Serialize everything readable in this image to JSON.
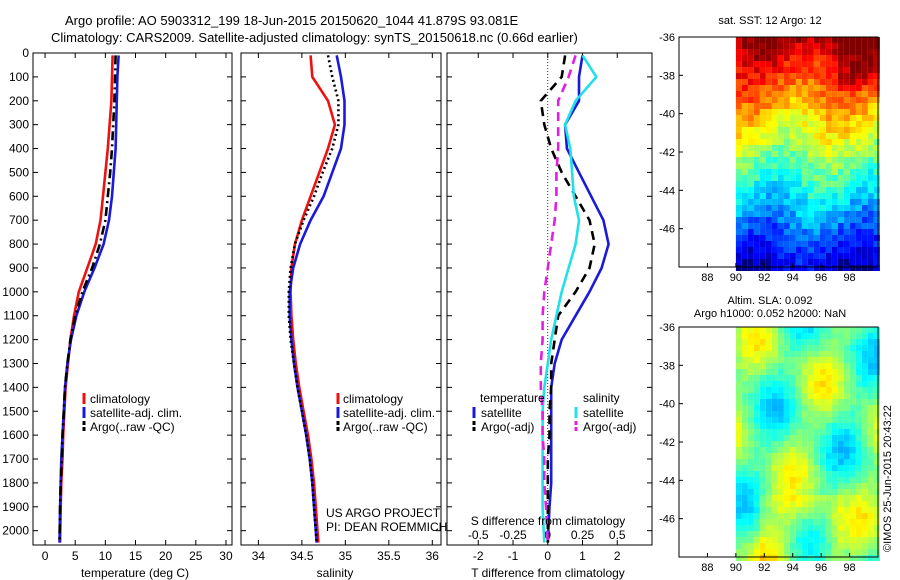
{
  "header": {
    "line1": "Argo profile: AO 5903312_199 18-Jun-2015 20150620_1044 41.879S 93.081E",
    "line2": "Climatology: CARS2009. Satellite-adjusted climatology: synTS_20150618.nc (0.66d earlier)"
  },
  "colors": {
    "climatology": "#ee1111",
    "satellite": "#1a1ad8",
    "argo": "#000000",
    "s_satellite": "#22e0e8",
    "s_argo": "#e020e0"
  },
  "chart_data": [
    {
      "type": "line",
      "xlabel": "temperature (deg C)",
      "ylabel": "",
      "xlim": [
        -2,
        31
      ],
      "xticks": [
        "0",
        "5",
        "10",
        "15",
        "20",
        "25",
        "30"
      ],
      "ylim": [
        2060,
        0
      ],
      "yticks": [
        "0",
        "100",
        "200",
        "300",
        "400",
        "500",
        "600",
        "700",
        "800",
        "900",
        "1000",
        "1100",
        "1200",
        "1300",
        "1400",
        "1500",
        "1600",
        "1700",
        "1800",
        "1900",
        "2000"
      ],
      "legend": [
        "climatology",
        "satellite-adj. clim.",
        "Argo(..raw -QC)"
      ],
      "series": [
        {
          "name": "climatology",
          "style": "solid",
          "color": "climatology",
          "x": [
            11.2,
            11.1,
            11.0,
            10.7,
            10.4,
            10.0,
            9.6,
            9.2,
            8.4,
            7.0,
            5.6,
            4.8,
            4.2,
            3.8,
            3.4,
            3.2,
            3.0,
            2.9,
            2.7,
            2.6,
            2.5
          ],
          "y": [
            10,
            100,
            200,
            300,
            400,
            500,
            600,
            700,
            800,
            900,
            1000,
            1100,
            1200,
            1300,
            1400,
            1500,
            1600,
            1700,
            1800,
            1900,
            2050
          ]
        },
        {
          "name": "satellite-adj. clim.",
          "style": "solid",
          "color": "satellite",
          "x": [
            12.2,
            12.0,
            11.9,
            11.8,
            11.7,
            11.4,
            11.1,
            10.6,
            9.7,
            8.2,
            6.5,
            5.2,
            4.3,
            3.7,
            3.3,
            3.1,
            2.9,
            2.7,
            2.6,
            2.5,
            2.4
          ],
          "y": [
            10,
            100,
            200,
            300,
            400,
            500,
            600,
            700,
            800,
            900,
            1000,
            1100,
            1200,
            1300,
            1400,
            1500,
            1600,
            1700,
            1800,
            1900,
            2050
          ]
        },
        {
          "name": "Argo(..raw -QC)",
          "style": "dashdot",
          "color": "argo",
          "x": [
            11.7,
            11.6,
            11.5,
            11.3,
            11.1,
            10.8,
            10.4,
            10.0,
            9.1,
            7.8,
            6.2,
            5.0,
            4.2,
            3.7,
            3.3,
            3.1,
            2.9,
            2.8,
            2.6,
            2.5,
            2.4
          ],
          "y": [
            10,
            100,
            200,
            300,
            400,
            500,
            600,
            700,
            800,
            900,
            1000,
            1100,
            1200,
            1300,
            1400,
            1500,
            1600,
            1700,
            1800,
            1900,
            2050
          ]
        }
      ]
    },
    {
      "type": "line",
      "xlabel": "salinity",
      "ylabel": "",
      "xlim": [
        33.8,
        36.1
      ],
      "xticks": [
        "34",
        "34.5",
        "35",
        "35.5",
        "36"
      ],
      "ylim": [
        2060,
        0
      ],
      "legend": [
        "climatology",
        "satellite-adj. clim.",
        "Argo(..raw -QC)"
      ],
      "annotation": [
        "US ARGO PROJECT",
        "PI: DEAN ROEMMICH"
      ],
      "series": [
        {
          "name": "climatology",
          "style": "solid",
          "color": "climatology",
          "x": [
            34.6,
            34.62,
            34.8,
            34.88,
            34.8,
            34.7,
            34.6,
            34.5,
            34.42,
            34.38,
            34.37,
            34.38,
            34.4,
            34.43,
            34.47,
            34.52,
            34.57,
            34.61,
            34.64,
            34.66,
            34.68,
            34.69
          ],
          "y": [
            10,
            100,
            200,
            300,
            400,
            500,
            600,
            700,
            800,
            900,
            1000,
            1100,
            1200,
            1300,
            1400,
            1500,
            1600,
            1700,
            1800,
            1900,
            2000,
            2050
          ]
        },
        {
          "name": "satellite-adj. clim.",
          "style": "solid",
          "color": "satellite",
          "x": [
            34.9,
            34.95,
            34.99,
            34.99,
            34.95,
            34.85,
            34.75,
            34.6,
            34.48,
            34.4,
            34.36,
            34.36,
            34.38,
            34.41,
            34.45,
            34.5,
            34.55,
            34.59,
            34.62,
            34.64,
            34.66,
            34.67
          ],
          "y": [
            10,
            100,
            200,
            300,
            400,
            500,
            600,
            700,
            800,
            900,
            1000,
            1100,
            1200,
            1300,
            1400,
            1500,
            1600,
            1700,
            1800,
            1900,
            2000,
            2050
          ]
        },
        {
          "name": "Argo(..raw -QC)",
          "style": "dotted",
          "color": "argo",
          "x": [
            34.8,
            34.85,
            34.92,
            34.92,
            34.85,
            34.74,
            34.64,
            34.52,
            34.42,
            34.37,
            34.35,
            34.35,
            34.37,
            34.41,
            34.45,
            34.5,
            34.55,
            34.59,
            34.62,
            34.64,
            34.66,
            34.67
          ],
          "y": [
            10,
            100,
            200,
            300,
            400,
            500,
            600,
            700,
            800,
            900,
            1000,
            1100,
            1200,
            1300,
            1400,
            1500,
            1600,
            1700,
            1800,
            1900,
            2000,
            2050
          ]
        }
      ]
    },
    {
      "type": "line",
      "xlabel": "T difference from climatology",
      "x2label": "S difference from climatology",
      "xlim": [
        -2.9,
        3.0
      ],
      "xticks": [
        "-2",
        "-1",
        "0",
        "1",
        "2"
      ],
      "x2ticks": [
        "-0.5",
        "-0.25",
        "0",
        "0.25",
        "0.5"
      ],
      "ylim": [
        2060,
        0
      ],
      "legend_titles": [
        "temperature",
        "salinity"
      ],
      "legend": [
        "satellite",
        "Argo(-adj)",
        "satellite",
        "Argo(-adj)"
      ],
      "series": [
        {
          "name": "temperature satellite",
          "style": "solid",
          "color": "satellite",
          "x": [
            1.0,
            0.9,
            0.9,
            0.5,
            0.55,
            0.9,
            1.25,
            1.6,
            1.75,
            1.55,
            1.2,
            0.8,
            0.4,
            0.2,
            0.1,
            0.1,
            0.1,
            0.1,
            0.1,
            0.05,
            0.0
          ],
          "y": [
            10,
            100,
            200,
            300,
            400,
            500,
            600,
            700,
            800,
            900,
            1000,
            1100,
            1200,
            1300,
            1400,
            1500,
            1600,
            1700,
            1800,
            1900,
            2050
          ]
        },
        {
          "name": "temperature Argo(-adj)",
          "style": "dashed",
          "color": "argo",
          "x": [
            0.5,
            0.4,
            -0.2,
            -0.1,
            0.1,
            0.4,
            0.8,
            1.2,
            1.35,
            1.2,
            0.8,
            0.3,
            0.2,
            0.1,
            0.1,
            0.05,
            0.05,
            0.0,
            0.0,
            0.0,
            0.0
          ],
          "y": [
            10,
            100,
            200,
            300,
            400,
            500,
            600,
            700,
            800,
            900,
            1000,
            1100,
            1200,
            1300,
            1400,
            1500,
            1600,
            1700,
            1800,
            1900,
            2050
          ]
        },
        {
          "name": "salinity satellite",
          "style": "solid",
          "color": "s_satellite",
          "x": [
            1.0,
            1.4,
            0.8,
            0.5,
            0.65,
            0.7,
            0.75,
            0.9,
            0.8,
            0.6,
            0.4,
            0.25,
            0.1,
            0.0,
            -0.1,
            -0.15,
            -0.15,
            -0.15,
            -0.15,
            -0.15,
            -0.1
          ],
          "y": [
            10,
            100,
            200,
            300,
            400,
            500,
            600,
            700,
            800,
            900,
            1000,
            1100,
            1200,
            1300,
            1400,
            1500,
            1600,
            1700,
            1800,
            1900,
            2050
          ]
        },
        {
          "name": "salinity Argo(-adj)",
          "style": "dashed",
          "color": "s_argo",
          "x": [
            0.8,
            0.6,
            0.3,
            0.3,
            0.3,
            0.25,
            0.25,
            0.2,
            0.1,
            0.0,
            -0.1,
            -0.15,
            -0.15,
            -0.2,
            -0.2,
            -0.15,
            -0.15,
            -0.1,
            -0.1,
            -0.05,
            0.0
          ],
          "y": [
            10,
            100,
            200,
            300,
            400,
            500,
            600,
            700,
            800,
            900,
            1000,
            1100,
            1200,
            1300,
            1400,
            1500,
            1600,
            1700,
            1800,
            1900,
            2050
          ]
        }
      ]
    },
    {
      "type": "heatmap",
      "title": "sat. SST: 12 Argo: 12",
      "xticks": [
        "88",
        "90",
        "92",
        "94",
        "96",
        "98"
      ],
      "yticks": [
        "-36",
        "-38",
        "-40",
        "-42",
        "-44",
        "-46"
      ],
      "xlim": [
        86,
        100
      ],
      "ylim": [
        -48,
        -36
      ],
      "data_xlim": [
        90,
        100
      ],
      "colormap": "jet"
    },
    {
      "type": "heatmap",
      "title": "Altim. SLA: 0.092",
      "subtitle": "Argo h1000: 0.052 h2000: NaN",
      "xticks": [
        "88",
        "90",
        "92",
        "94",
        "96",
        "98"
      ],
      "yticks": [
        "-36",
        "-38",
        "-40",
        "-42",
        "-44",
        "-46"
      ],
      "xlim": [
        86,
        100
      ],
      "ylim": [
        -48,
        -36
      ],
      "data_xlim": [
        90,
        100
      ],
      "colormap": "jet"
    }
  ],
  "footer": {
    "stamp": "©IMOS 25-Jun-2015 20:43:22"
  }
}
